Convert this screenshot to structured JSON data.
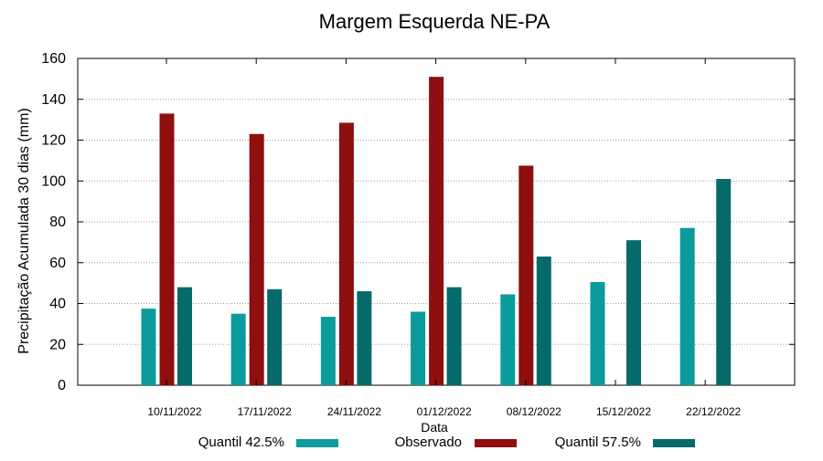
{
  "chart_data": {
    "type": "bar",
    "title": "Margem Esquerda NE-PA",
    "xlabel": "Data",
    "ylabel": "Precipitação Acumulada 30 dias (mm)",
    "ylim": [
      0,
      160
    ],
    "yticks": [
      0,
      20,
      40,
      60,
      80,
      100,
      120,
      140,
      160
    ],
    "grid": true,
    "legend_position": "bottom",
    "categories": [
      "10/11/2022",
      "17/11/2022",
      "24/11/2022",
      "01/12/2022",
      "08/12/2022",
      "15/12/2022",
      "22/12/2022"
    ],
    "series": [
      {
        "name": "Quantil 42.5%",
        "color": "#0b9b9b",
        "values": [
          37.5,
          35,
          33.5,
          36,
          44.5,
          50.5,
          77
        ]
      },
      {
        "name": "Observado",
        "color": "#8f0e0e",
        "values": [
          133,
          123,
          128.5,
          151,
          107.5,
          null,
          null
        ]
      },
      {
        "name": "Quantil 57.5%",
        "color": "#076a6a",
        "values": [
          48,
          47,
          46,
          48,
          63,
          71,
          101
        ]
      }
    ]
  }
}
